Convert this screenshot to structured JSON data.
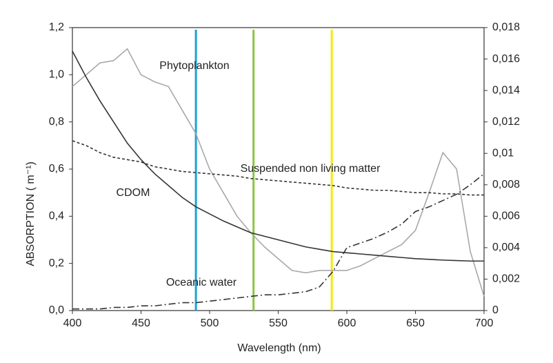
{
  "chart_data": {
    "type": "line",
    "x_label": "Wavelength (nm)",
    "y_label": "ABSORPTION ( m⁻¹)",
    "x": [
      400,
      410,
      420,
      430,
      440,
      450,
      460,
      470,
      480,
      490,
      500,
      510,
      520,
      530,
      540,
      550,
      560,
      570,
      580,
      590,
      600,
      610,
      620,
      630,
      640,
      650,
      660,
      670,
      680,
      690,
      700
    ],
    "xlim": [
      400,
      700
    ],
    "xticks": [
      400,
      450,
      500,
      550,
      600,
      650,
      700
    ],
    "ylim": [
      0,
      1.2
    ],
    "yticks": [
      {
        "value": 0,
        "label": "0,0"
      },
      {
        "value": 0.2,
        "label": "0,2"
      },
      {
        "value": 0.4,
        "label": "0,4"
      },
      {
        "value": 0.6,
        "label": "0,6"
      },
      {
        "value": 0.8,
        "label": "0,8"
      },
      {
        "value": 1.0,
        "label": "1,0"
      },
      {
        "value": 1.2,
        "label": "1,2"
      }
    ],
    "y2lim": [
      0,
      0.018
    ],
    "y2ticks": [
      0,
      {
        "value": 0.002,
        "label": "0,002"
      },
      {
        "value": 0.004,
        "label": "0,004"
      },
      {
        "value": 0.006,
        "label": "0,006"
      },
      {
        "value": 0.008,
        "label": "0,008"
      },
      {
        "value": 0.01,
        "label": "0,01"
      },
      {
        "value": 0.012,
        "label": "0,012"
      },
      {
        "value": 0.014,
        "label": "0,014"
      },
      {
        "value": 0.016,
        "label": "0,016"
      },
      {
        "value": 0.018,
        "label": "0,018"
      }
    ],
    "series": [
      {
        "name": "Phytoplankton",
        "color": "#a8a8a8",
        "dash": "none",
        "values": [
          0.95,
          1.0,
          1.05,
          1.06,
          1.11,
          1.0,
          0.97,
          0.95,
          0.85,
          0.75,
          0.6,
          0.5,
          0.4,
          0.33,
          0.27,
          0.22,
          0.17,
          0.16,
          0.17,
          0.17,
          0.17,
          0.19,
          0.22,
          0.25,
          0.28,
          0.34,
          0.5,
          0.67,
          0.6,
          0.25,
          0.06
        ]
      },
      {
        "name": "CDOM",
        "color": "#333333",
        "dash": "none",
        "values": [
          1.1,
          0.99,
          0.89,
          0.8,
          0.71,
          0.64,
          0.58,
          0.53,
          0.48,
          0.44,
          0.41,
          0.38,
          0.355,
          0.33,
          0.315,
          0.3,
          0.285,
          0.27,
          0.26,
          0.25,
          0.245,
          0.24,
          0.235,
          0.23,
          0.225,
          0.22,
          0.217,
          0.214,
          0.212,
          0.21,
          0.21
        ]
      },
      {
        "name": "Suspended non living matter",
        "color": "#333333",
        "dash": "4,3",
        "values": [
          0.72,
          0.7,
          0.67,
          0.65,
          0.64,
          0.63,
          0.61,
          0.6,
          0.59,
          0.585,
          0.58,
          0.575,
          0.57,
          0.56,
          0.555,
          0.55,
          0.545,
          0.54,
          0.535,
          0.53,
          0.52,
          0.515,
          0.51,
          0.51,
          0.505,
          0.5,
          0.5,
          0.495,
          0.495,
          0.49,
          0.49
        ]
      },
      {
        "name": "Oceanic water",
        "color": "#333333",
        "dash": "10,4,2,4",
        "axis": "y2",
        "values": [
          0.0001,
          0.0001,
          0.0001,
          0.0002,
          0.0002,
          0.0003,
          0.0003,
          0.0004,
          0.0005,
          0.0005,
          0.0006,
          0.0007,
          0.0008,
          0.0009,
          0.001,
          0.001,
          0.0011,
          0.0012,
          0.0015,
          0.0025,
          0.004,
          0.0043,
          0.0046,
          0.005,
          0.0055,
          0.0063,
          0.0066,
          0.007,
          0.0074,
          0.008,
          0.0087
        ]
      }
    ],
    "vlines": [
      {
        "x": 490,
        "color": "#1aa3d8"
      },
      {
        "x": 532,
        "color": "#8cc63f"
      },
      {
        "x": 589,
        "color": "#f0ec00"
      }
    ]
  }
}
